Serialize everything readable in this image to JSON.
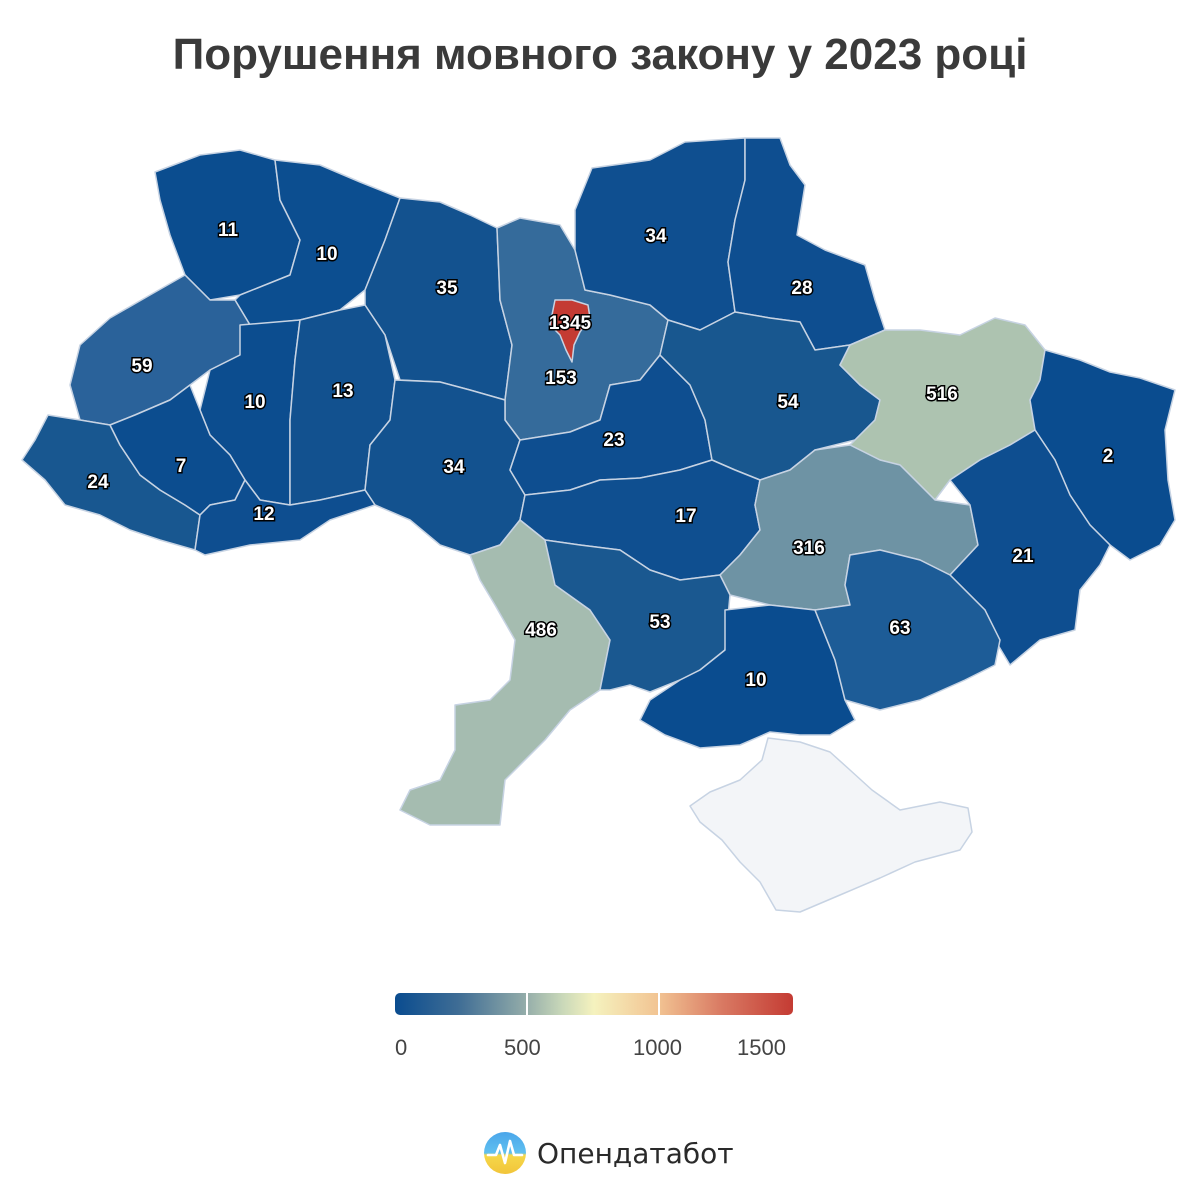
{
  "title": "Порушення мовного закону у 2023 році",
  "colors": {
    "low": "#0a4c8f",
    "mid_low": "#356b9b",
    "mid": "#8fa9a8",
    "pale": "#adc3b0",
    "high": "#c43b33",
    "crimea": "#f3f5f8"
  },
  "regions": [
    {
      "name": "volyn",
      "value": "11"
    },
    {
      "name": "rivne",
      "value": "10"
    },
    {
      "name": "zhytomyr",
      "value": "35"
    },
    {
      "name": "kyiv-oblast",
      "value": "153"
    },
    {
      "name": "kyiv-city",
      "value": "1345"
    },
    {
      "name": "chernihiv",
      "value": "34"
    },
    {
      "name": "sumy",
      "value": "28"
    },
    {
      "name": "lviv",
      "value": "59"
    },
    {
      "name": "ternopil",
      "value": "10"
    },
    {
      "name": "khmelnytskyi",
      "value": "13"
    },
    {
      "name": "vinnytsia",
      "value": "34"
    },
    {
      "name": "cherkasy",
      "value": "23"
    },
    {
      "name": "poltava",
      "value": "54"
    },
    {
      "name": "kharkiv",
      "value": "516"
    },
    {
      "name": "luhansk",
      "value": "2"
    },
    {
      "name": "zakarpattia",
      "value": "24"
    },
    {
      "name": "ivano-frankivsk",
      "value": "7"
    },
    {
      "name": "chernivtsi",
      "value": "12"
    },
    {
      "name": "kirovohrad",
      "value": "17"
    },
    {
      "name": "dnipropetrovsk",
      "value": "316"
    },
    {
      "name": "donetsk",
      "value": "21"
    },
    {
      "name": "odesa",
      "value": "486"
    },
    {
      "name": "mykolaiv",
      "value": "53"
    },
    {
      "name": "kherson",
      "value": "10"
    },
    {
      "name": "zaporizhzhia",
      "value": "63"
    },
    {
      "name": "crimea",
      "value": ""
    }
  ],
  "legend": {
    "ticks": [
      "0",
      "500",
      "1000",
      "1500"
    ]
  },
  "brand": {
    "name": "Опендатабот"
  }
}
